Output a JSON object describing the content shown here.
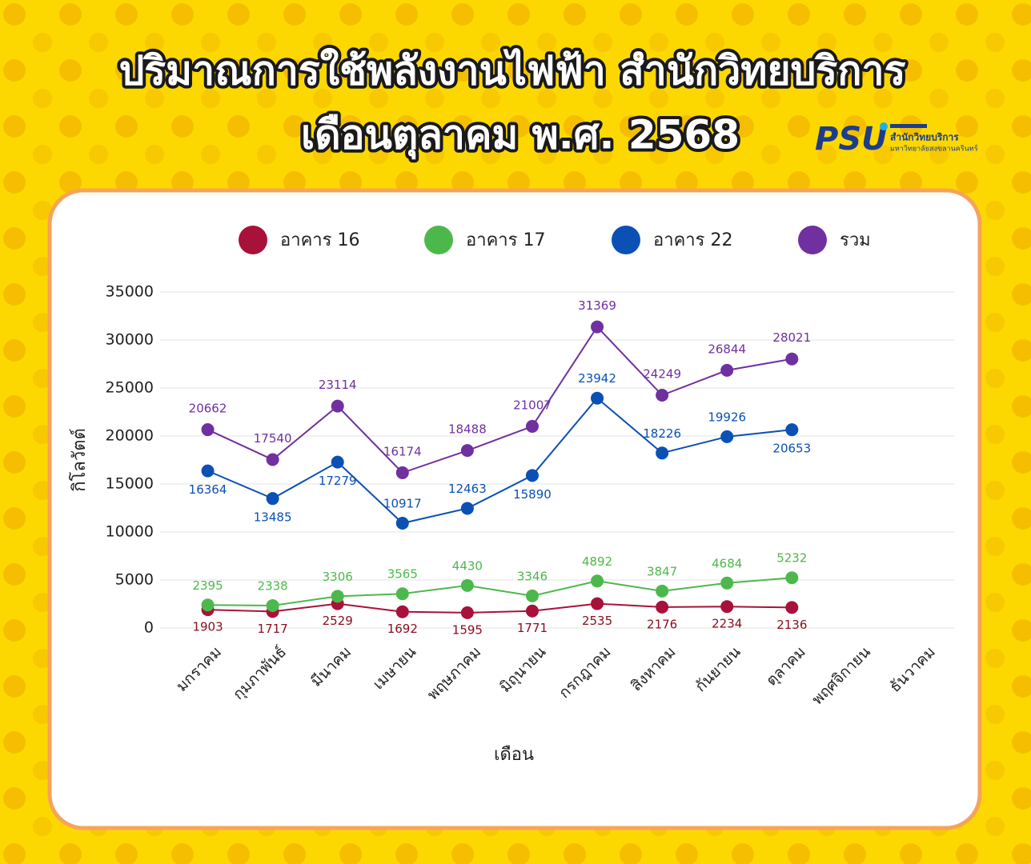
{
  "title_lines": [
    "ปริมาณการใช้พลังงานไฟฟ้า สำนักวิทยบริการ",
    "เดือนตุลาคม พ.ศ. 2568"
  ],
  "logo": {
    "mark": "PSU",
    "name": "สำนักวิทยบริการ",
    "university": "มหาวิทยาลัยสงขลานครินทร์"
  },
  "chart_data": {
    "type": "line",
    "x_label": "เดือน",
    "y_label": "กิโลวัตต์",
    "categories": [
      "มกราคม",
      "กุมภาพันธ์",
      "มีนาคม",
      "เมษายน",
      "พฤษภาคม",
      "มิถุนายน",
      "กรกฎาคม",
      "สิงหาคม",
      "กันยายน",
      "ตุลาคม",
      "พฤศจิกายน",
      "ธันวาคม"
    ],
    "series": [
      {
        "name": "อาคาร 16",
        "color": "#a8123a",
        "values": [
          1903,
          1717,
          2529,
          1692,
          1595,
          1771,
          2535,
          2176,
          2234,
          2136,
          null,
          null
        ]
      },
      {
        "name": "อาคาร 17",
        "color": "#4cb84c",
        "values": [
          2395,
          2338,
          3306,
          3565,
          4430,
          3346,
          4892,
          3847,
          4684,
          5232,
          null,
          null
        ]
      },
      {
        "name": "อาคาร 22",
        "color": "#0b50b4",
        "values": [
          16364,
          13485,
          17279,
          10917,
          12463,
          15890,
          23942,
          18226,
          19926,
          20653,
          null,
          null
        ]
      },
      {
        "name": "รวม",
        "color": "#7030a0",
        "values": [
          20662,
          17540,
          23114,
          16174,
          18488,
          21007,
          31369,
          24249,
          26844,
          28021,
          null,
          null
        ]
      }
    ],
    "ylim": [
      0,
      35000
    ],
    "yticks": [
      0,
      5000,
      10000,
      15000,
      20000,
      25000,
      30000,
      35000
    ],
    "grid": true
  }
}
